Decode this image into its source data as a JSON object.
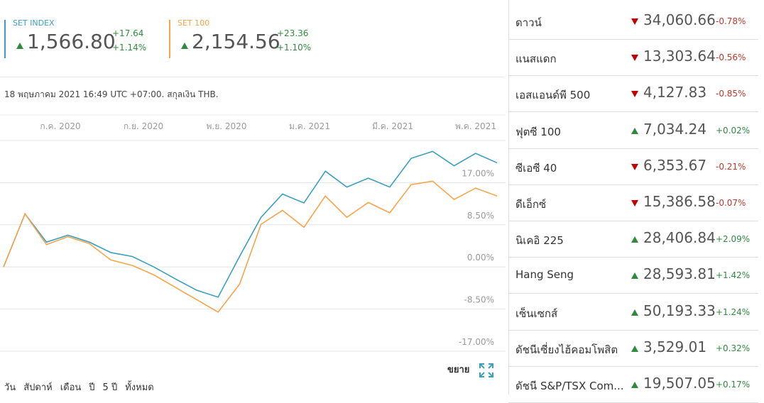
{
  "indices": [
    {
      "name": "SET INDEX",
      "color": "#3a9fbf",
      "value": "1,566.80",
      "change": "+17.64",
      "percent": "+1.14%"
    },
    {
      "name": "SET 100",
      "color": "#f5a54a",
      "value": "2,154.56",
      "change": "+23.36",
      "percent": "+1.10%"
    }
  ],
  "timestamp": "18 พฤษภาคม 2021 16:49 UTC +07:00. สกุลเงิน THB.",
  "chart_data": {
    "type": "line",
    "x_labels": [
      "ก.ค. 2020",
      "ก.ย. 2020",
      "พ.ย. 2020",
      "ม.ค. 2021",
      "มี.ค. 2021",
      "พ.ค. 2021"
    ],
    "ylim": [
      -17,
      25.5
    ],
    "yticks": [
      {
        "value": 17,
        "label": "17.00%"
      },
      {
        "value": 8.5,
        "label": "8.50%"
      },
      {
        "value": 0,
        "label": "0.00%"
      },
      {
        "value": -8.5,
        "label": "-8.50%"
      },
      {
        "value": -17,
        "label": "-17.00%"
      }
    ],
    "grid": true,
    "series": [
      {
        "name": "SET INDEX",
        "color": "#3a9fbf",
        "values": [
          0,
          10.7,
          5,
          6.4,
          5,
          2.9,
          2.1,
          0,
          -2.4,
          -4.7,
          -6.1,
          2.1,
          10,
          14.7,
          12.9,
          19.3,
          16.1,
          17.9,
          16.1,
          21.9,
          23.3,
          20.4,
          22.9,
          21
        ]
      },
      {
        "name": "SET 100",
        "color": "#f5a54a",
        "values": [
          0,
          10.7,
          4.5,
          6.1,
          4.7,
          1.4,
          0.3,
          -1.6,
          -4.1,
          -6.6,
          -9.1,
          -3.5,
          8.6,
          11.4,
          8,
          14.3,
          10,
          13,
          10.9,
          16.6,
          17.3,
          13.6,
          15.9,
          14.3
        ]
      }
    ]
  },
  "ranges": [
    "วัน",
    "สัปดาห์",
    "เดือน",
    "ปี",
    "5 ปี",
    "ทั้งหมด"
  ],
  "expand": "ขยาย",
  "markets": [
    {
      "name": "ดาวน์",
      "value": "34,060.66",
      "change": "-0.78%"
    },
    {
      "name": "แนสแดก",
      "value": "13,303.64",
      "change": "-0.56%"
    },
    {
      "name": "เอสแอนด์พี 500",
      "value": "4,127.83",
      "change": "-0.85%"
    },
    {
      "name": "ฟุตซี 100",
      "value": "7,034.24",
      "change": "+0.02%"
    },
    {
      "name": "ซีเอซี 40",
      "value": "6,353.67",
      "change": "-0.21%"
    },
    {
      "name": "ดีเอ็กซ์",
      "value": "15,386.58",
      "change": "-0.07%"
    },
    {
      "name": "นิเคอิ 225",
      "value": "28,406.84",
      "change": "+2.09%"
    },
    {
      "name": "Hang Seng",
      "value": "28,593.81",
      "change": "+1.42%"
    },
    {
      "name": "เซ็นเซกส์",
      "value": "50,193.33",
      "change": "+1.24%"
    },
    {
      "name": "ดัชนีเซี่ยงไฮ้คอมโพสิต",
      "value": "3,529.01",
      "change": "+0.32%"
    },
    {
      "name": "ดัชนี S&P/TSX Com...",
      "value": "19,507.05",
      "change": "+0.17%"
    }
  ]
}
